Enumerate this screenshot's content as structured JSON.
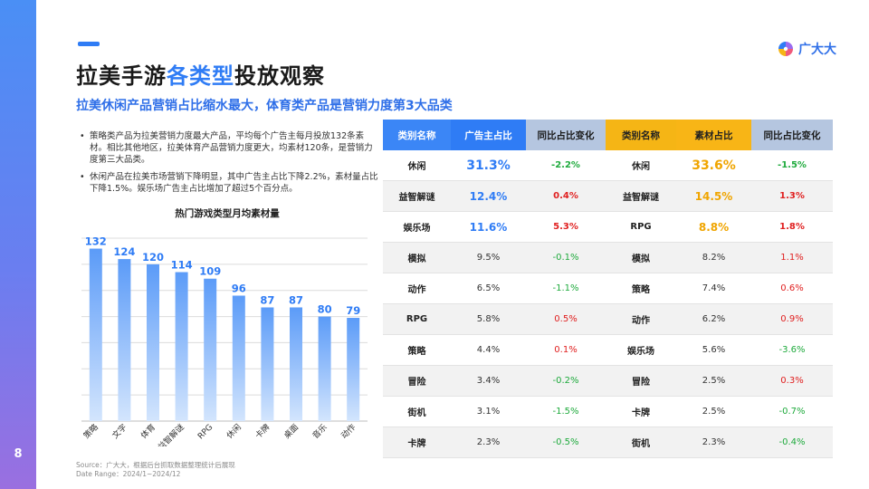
{
  "page_number": "8",
  "title": {
    "prefix": "拉美手游",
    "highlight": "各类型",
    "suffix": "投放观察"
  },
  "subtitle": "拉美休闲产品营销占比缩水最大，体育类产品是营销力度第3大品类",
  "logo": {
    "text": "广大大",
    "icon": "guangdada-logo-icon"
  },
  "bullets": [
    "策略类产品为拉美营销力度最大产品，平均每个广告主每月投放132条素材。相比其他地区，拉美体育产品营销力度更大，均素材120条，是营销力度第三大品类。",
    "休闲产品在拉美市场营销下降明显，其中广告主占比下降2.2%，素材量占比下降1.5%。娱乐场广告主占比增加了超过5个百分点。"
  ],
  "chart_data": {
    "type": "bar",
    "title": "热门游戏类型月均素材量",
    "categories": [
      "策略",
      "文字",
      "体育",
      "益智解谜",
      "RPG",
      "休闲",
      "卡牌",
      "桌面",
      "音乐",
      "动作"
    ],
    "values": [
      132,
      124,
      120,
      114,
      109,
      96,
      87,
      87,
      80,
      79
    ],
    "ylim": [
      0,
      140
    ],
    "grid": true,
    "colors": {
      "bar_top": "#5b9bf8",
      "bar_bottom": "#d3e5fd",
      "grid": "#dcdcdc",
      "label": "#2f7cf5"
    }
  },
  "table": {
    "headers": [
      "类别名称",
      "广告主占比",
      "同比占比变化",
      "类别名称",
      "素材占比",
      "同比占比变化"
    ],
    "rows": [
      [
        "休闲",
        "31.3%",
        "-2.2%",
        "休闲",
        "33.6%",
        "-1.5%"
      ],
      [
        "益智解谜",
        "12.4%",
        "0.4%",
        "益智解谜",
        "14.5%",
        "1.3%"
      ],
      [
        "娱乐场",
        "11.6%",
        "5.3%",
        "RPG",
        "8.8%",
        "1.8%"
      ],
      [
        "模拟",
        "9.5%",
        "-0.1%",
        "模拟",
        "8.2%",
        "1.1%"
      ],
      [
        "动作",
        "6.5%",
        "-1.1%",
        "策略",
        "7.4%",
        "0.6%"
      ],
      [
        "RPG",
        "5.8%",
        "0.5%",
        "动作",
        "6.2%",
        "0.9%"
      ],
      [
        "策略",
        "4.4%",
        "0.1%",
        "娱乐场",
        "5.6%",
        "-3.6%"
      ],
      [
        "冒险",
        "3.4%",
        "-0.2%",
        "冒险",
        "2.5%",
        "0.3%"
      ],
      [
        "街机",
        "3.1%",
        "-1.5%",
        "卡牌",
        "2.5%",
        "-0.7%"
      ],
      [
        "卡牌",
        "2.3%",
        "-0.5%",
        "街机",
        "2.3%",
        "-0.4%"
      ]
    ],
    "colors": {
      "positive": "#e02020",
      "negative": "#1eaa3c",
      "ad_share": "#2f7cf5",
      "material_share": "#f0a500"
    }
  },
  "source": {
    "line1": "Source：广大大，根据后台抓取数据整理统计后展现",
    "line2": "Date Range：2024/1~2024/12"
  }
}
